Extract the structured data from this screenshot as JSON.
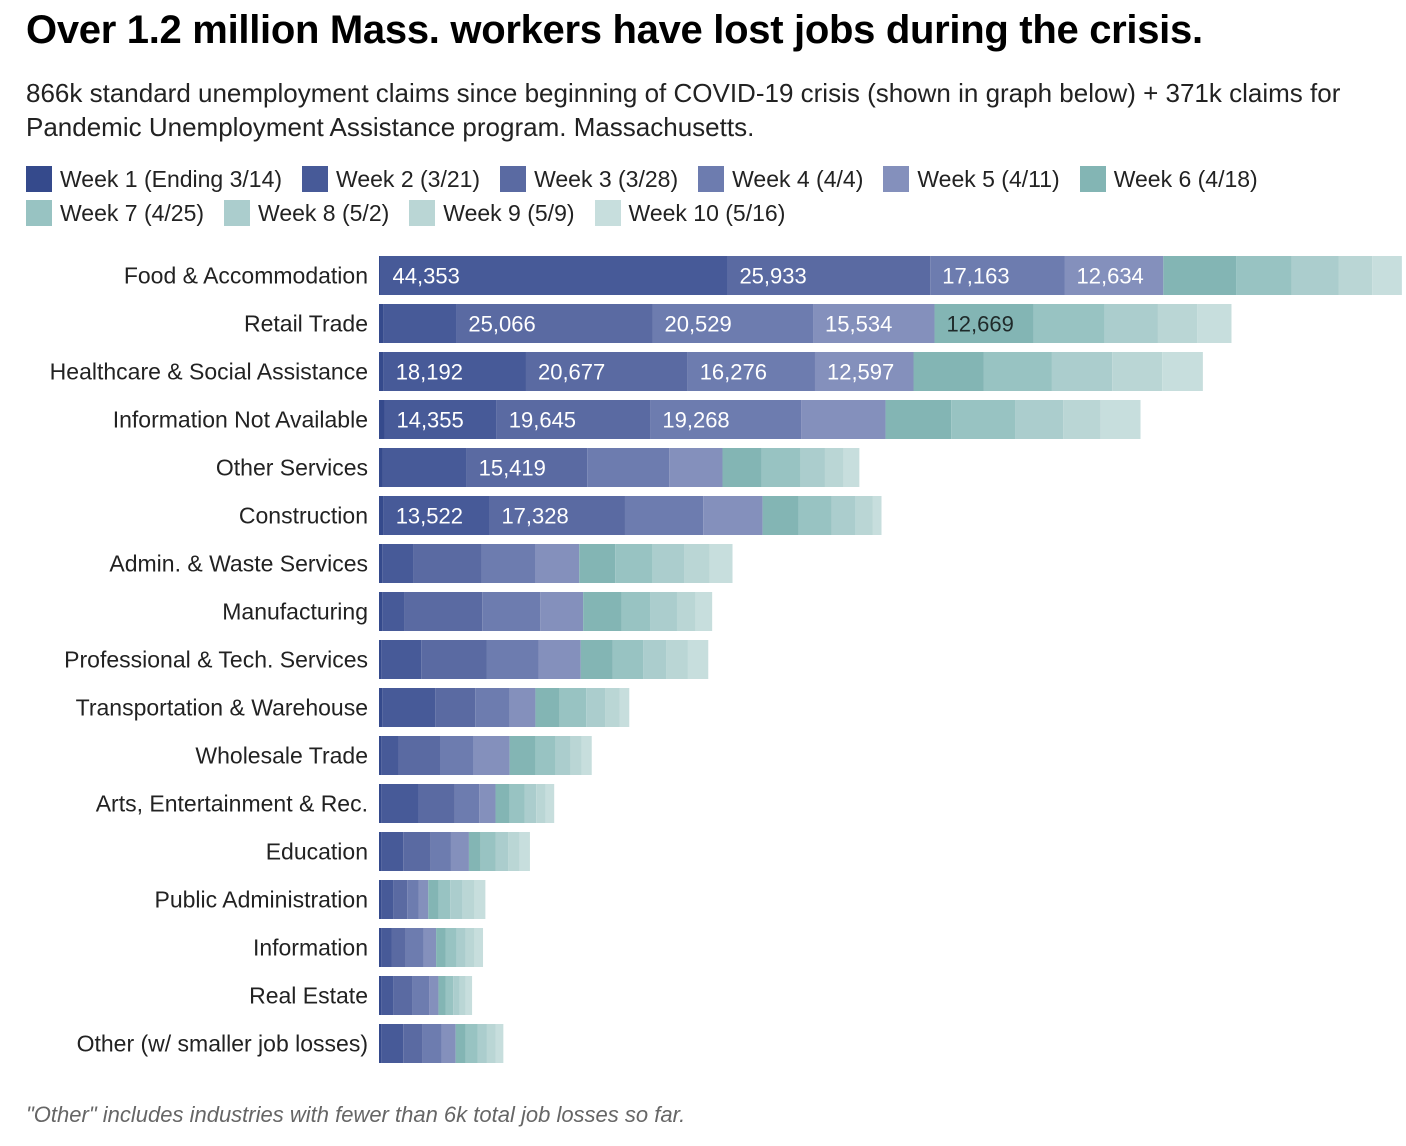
{
  "header": {
    "title": "Over 1.2 million Mass. workers have lost jobs during the crisis.",
    "subtitle": "866k standard unemployment claims since beginning of COVID-19 crisis (shown in graph below) + 371k claims for Pandemic Unemployment Assistance program. Massachusetts."
  },
  "footer": {
    "note": "\"Other\" includes industries with fewer than 6k total job losses so far."
  },
  "chart_data": {
    "type": "bar",
    "orientation": "horizontal",
    "stacked": true,
    "title": "Over 1.2 million Mass. workers have lost jobs during the crisis.",
    "subtitle": "866k standard unemployment claims since beginning of COVID-19 crisis (shown in graph below) + 371k claims for Pandemic Unemployment Assistance program. Massachusetts.",
    "legend_position": "top-left",
    "grid": false,
    "xlim": [
      0,
      128500
    ],
    "categories": [
      "Food & Accommodation",
      "Retail Trade",
      "Healthcare & Social Assistance",
      "Information Not Available",
      "Other Services",
      "Construction",
      "Admin. & Waste Services",
      "Manufacturing",
      "Professional & Tech. Services",
      "Transportation & Warehouse",
      "Wholesale Trade",
      "Arts, Entertainment & Rec.",
      "Education",
      "Public Administration",
      "Information",
      "Real Estate",
      "Other (w/ smaller job losses)"
    ],
    "series": [
      {
        "name": "Week 1 (Ending 3/14)",
        "color": "#354a8c",
        "values": [
          200,
          600,
          600,
          700,
          500,
          600,
          400,
          400,
          300,
          400,
          300,
          300,
          300,
          300,
          300,
          300,
          300
        ]
      },
      {
        "name": "Week 2 (3/21)",
        "color": "#475a98",
        "values": [
          44353,
          9300,
          18192,
          14355,
          10700,
          13522,
          4000,
          2800,
          5100,
          6800,
          2200,
          4800,
          2800,
          1500,
          1300,
          1500,
          2800
        ]
      },
      {
        "name": "Week 3 (3/28)",
        "color": "#5a6aa2",
        "values": [
          25933,
          25066,
          20677,
          19645,
          15419,
          17328,
          8700,
          10000,
          8400,
          5100,
          5300,
          4600,
          3500,
          1800,
          1800,
          2500,
          2500
        ]
      },
      {
        "name": "Week 4 (4/4)",
        "color": "#6d7caf",
        "values": [
          17163,
          20529,
          16276,
          19268,
          10500,
          10000,
          6900,
          7400,
          6600,
          4400,
          4300,
          3100,
          2600,
          1500,
          2300,
          2100,
          2400
        ]
      },
      {
        "name": "Week 5 (4/11)",
        "color": "#8490bc",
        "values": [
          12634,
          15534,
          12597,
          10800,
          6800,
          7600,
          5600,
          5500,
          5400,
          3300,
          4600,
          2100,
          2300,
          1200,
          1600,
          1200,
          1800
        ]
      },
      {
        "name": "Week 6 (4/18)",
        "color": "#83b5b4",
        "values": [
          9300,
          12669,
          9000,
          8400,
          5000,
          4600,
          4600,
          4900,
          4100,
          3100,
          3300,
          1800,
          1500,
          1300,
          1200,
          900,
          1300
        ]
      },
      {
        "name": "Week 7 (4/25)",
        "color": "#98c3c2",
        "values": [
          7100,
          9100,
          8700,
          8200,
          5000,
          4200,
          4800,
          3700,
          3900,
          3400,
          2600,
          1900,
          1900,
          1500,
          1400,
          1000,
          1500
        ]
      },
      {
        "name": "Week 8 (5/2)",
        "color": "#abcdcd",
        "values": [
          6000,
          6800,
          7700,
          6100,
          3100,
          3100,
          4000,
          3400,
          2900,
          2400,
          1900,
          1500,
          1600,
          1600,
          1200,
          800,
          1200
        ]
      },
      {
        "name": "Week 9 (5/9)",
        "color": "#bad6d5",
        "values": [
          4300,
          5000,
          6400,
          4800,
          2400,
          2200,
          3300,
          2400,
          2800,
          1900,
          1400,
          1200,
          1500,
          1500,
          1100,
          800,
          1100
        ]
      },
      {
        "name": "Week 10 (5/16)",
        "color": "#c7dedd",
        "values": [
          3800,
          4400,
          5200,
          5100,
          2000,
          1100,
          2900,
          2100,
          2600,
          1200,
          1300,
          1100,
          1300,
          1400,
          1100,
          800,
          1000
        ]
      }
    ],
    "data_labels": [
      {
        "category": "Food & Accommodation",
        "series": "Week 2 (3/21)",
        "text": "44,353"
      },
      {
        "category": "Food & Accommodation",
        "series": "Week 3 (3/28)",
        "text": "25,933"
      },
      {
        "category": "Food & Accommodation",
        "series": "Week 4 (4/4)",
        "text": "17,163"
      },
      {
        "category": "Food & Accommodation",
        "series": "Week 5 (4/11)",
        "text": "12,634"
      },
      {
        "category": "Retail Trade",
        "series": "Week 3 (3/28)",
        "text": "25,066"
      },
      {
        "category": "Retail Trade",
        "series": "Week 4 (4/4)",
        "text": "20,529"
      },
      {
        "category": "Retail Trade",
        "series": "Week 5 (4/11)",
        "text": "15,534"
      },
      {
        "category": "Retail Trade",
        "series": "Week 6 (4/18)",
        "text": "12,669",
        "dark": true
      },
      {
        "category": "Healthcare & Social Assistance",
        "series": "Week 2 (3/21)",
        "text": "18,192"
      },
      {
        "category": "Healthcare & Social Assistance",
        "series": "Week 3 (3/28)",
        "text": "20,677"
      },
      {
        "category": "Healthcare & Social Assistance",
        "series": "Week 4 (4/4)",
        "text": "16,276"
      },
      {
        "category": "Healthcare & Social Assistance",
        "series": "Week 5 (4/11)",
        "text": "12,597"
      },
      {
        "category": "Information Not Available",
        "series": "Week 2 (3/21)",
        "text": "14,355"
      },
      {
        "category": "Information Not Available",
        "series": "Week 3 (3/28)",
        "text": "19,645"
      },
      {
        "category": "Information Not Available",
        "series": "Week 4 (4/4)",
        "text": "19,268"
      },
      {
        "category": "Other Services",
        "series": "Week 3 (3/28)",
        "text": "15,419"
      },
      {
        "category": "Construction",
        "series": "Week 2 (3/21)",
        "text": "13,522"
      },
      {
        "category": "Construction",
        "series": "Week 3 (3/28)",
        "text": "17,328"
      }
    ]
  }
}
